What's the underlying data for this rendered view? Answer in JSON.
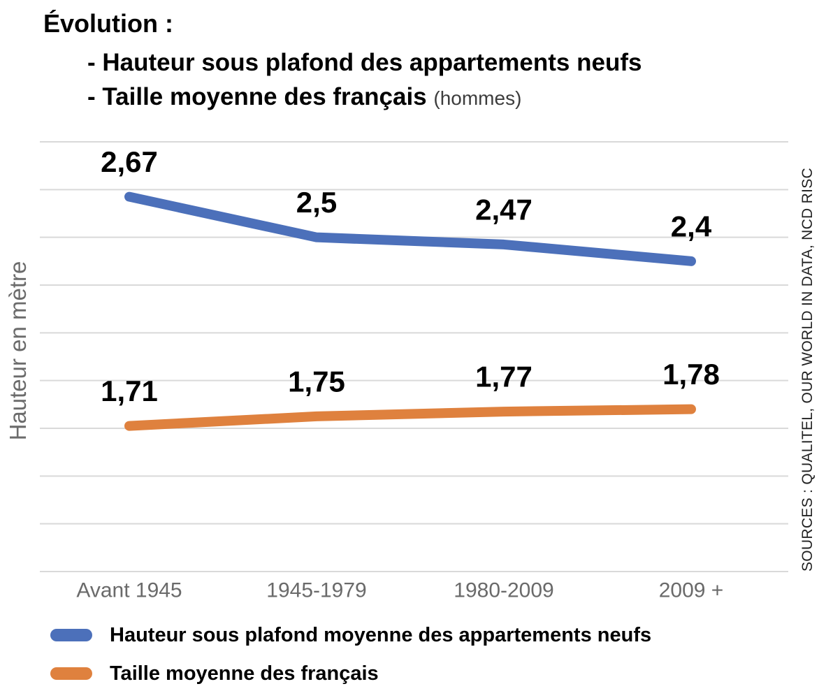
{
  "title": {
    "line1": "Évolution :",
    "line2": "- Hauteur sous plafond des appartements neufs",
    "line3": "- Taille moyenne des français",
    "line3_note": "(hommes)"
  },
  "y_axis_label": "Hauteur en mètre",
  "sources_label": "SOURCES : QUALITEL, OUR WORLD IN DATA, NCD RISC",
  "colors": {
    "series_ceiling": "#4c70ba",
    "series_height": "#df813e",
    "gridline": "#d9d9d9",
    "axis_text": "#6a6a6a",
    "data_label": "#000000"
  },
  "chart_data": {
    "type": "line",
    "title": "Évolution : Hauteur sous plafond des appartements neufs / Taille moyenne des français (hommes)",
    "categories": [
      "Avant 1945",
      "1945-1979",
      "1980-2009",
      "2009 +"
    ],
    "series": [
      {
        "name": "Hauteur sous plafond moyenne des appartements neufs",
        "values": [
          2.67,
          2.5,
          2.47,
          2.4
        ],
        "labels": [
          "2,67",
          "2,5",
          "2,47",
          "2,4"
        ],
        "color": "#4c70ba"
      },
      {
        "name": "Taille moyenne des français",
        "values": [
          1.71,
          1.75,
          1.77,
          1.78
        ],
        "labels": [
          "1,71",
          "1,75",
          "1,77",
          "1,78"
        ],
        "color": "#df813e"
      }
    ],
    "xlabel": "",
    "ylabel": "Hauteur en mètre",
    "ylim": [
      1.1,
      2.9
    ],
    "grid_step": 0.2,
    "grid": true,
    "legend_position": "bottom",
    "data_labels_shown": true,
    "y_tick_labels_shown": false
  }
}
